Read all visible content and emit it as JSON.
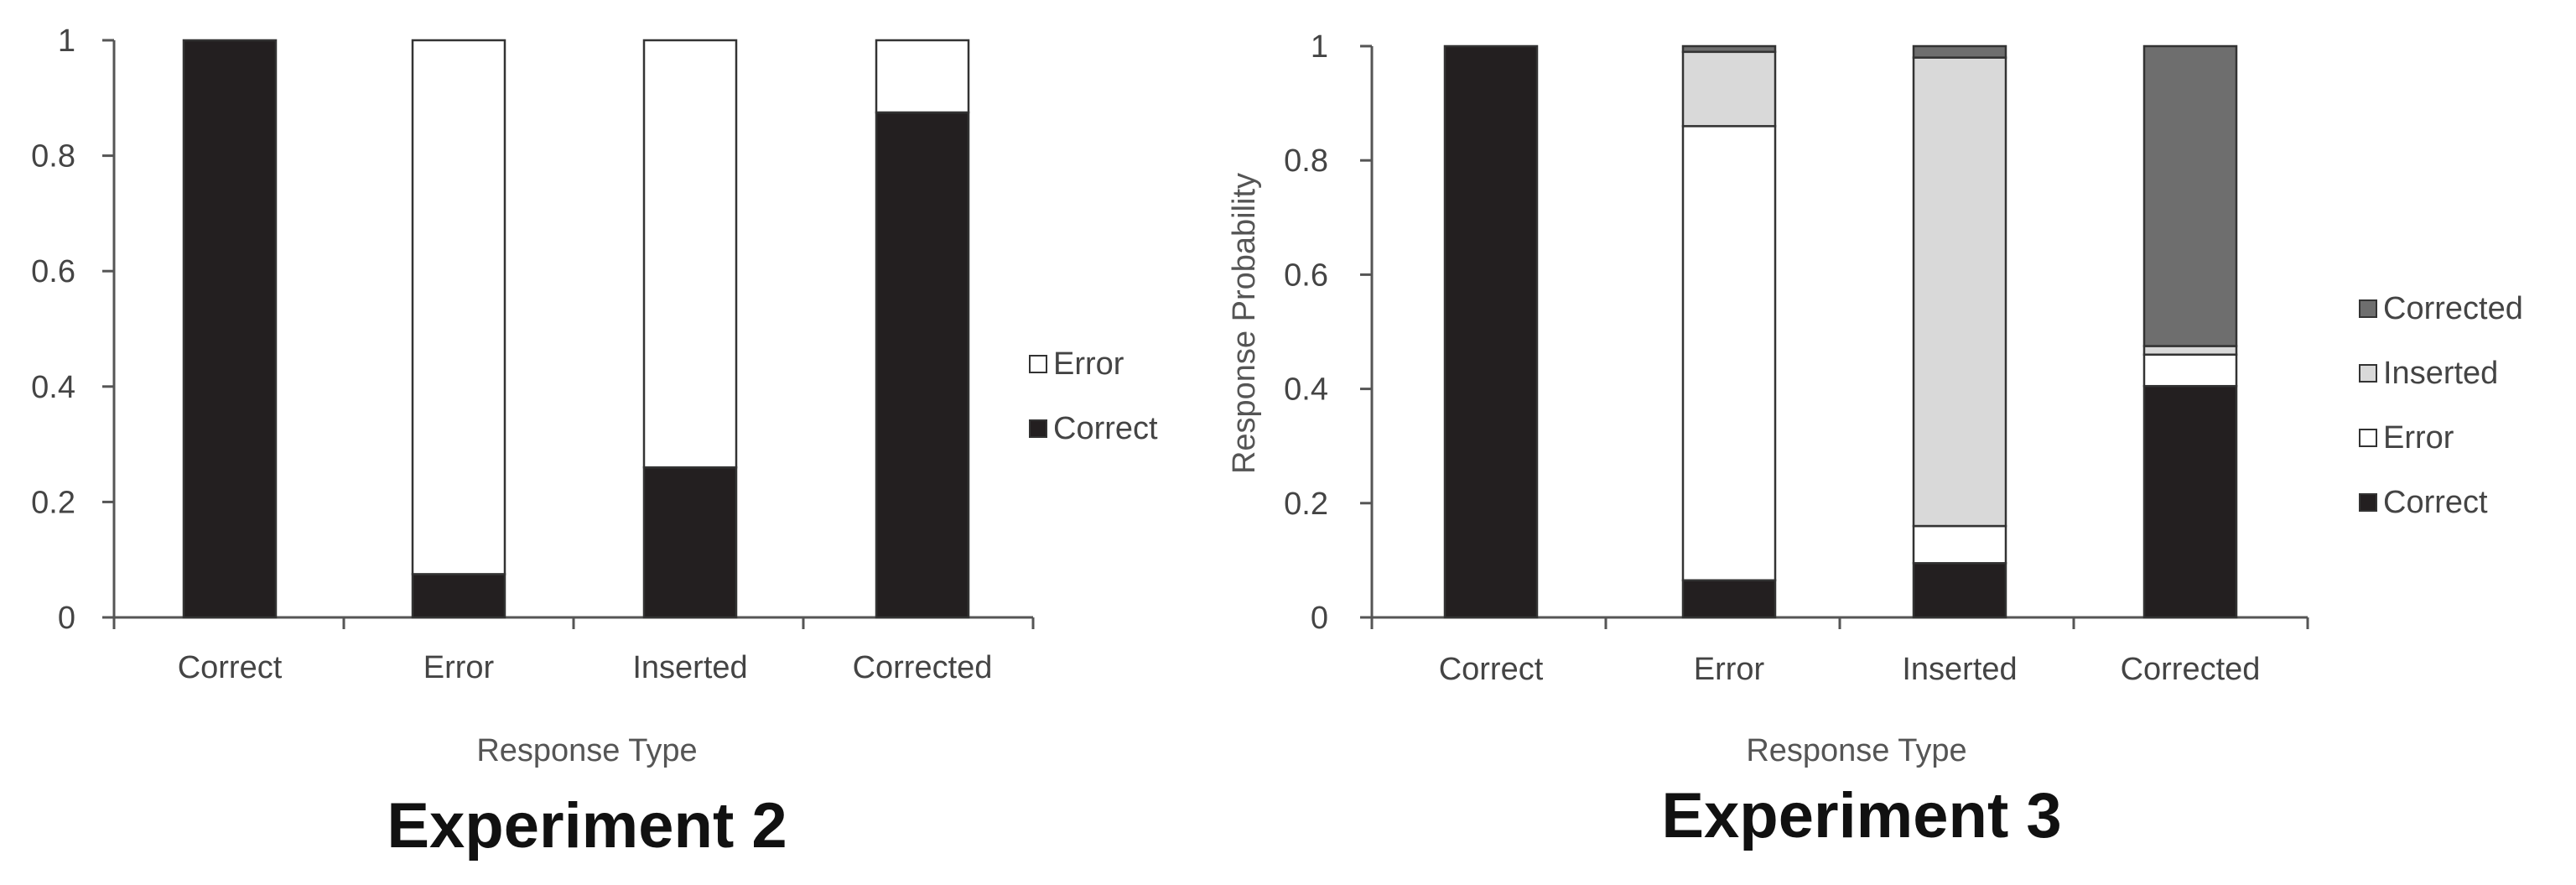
{
  "colors": {
    "Correct": "#231f20",
    "Error": "#ffffff",
    "Inserted": "#d9d9d9",
    "Corrected": "#6e6e6e",
    "axis": "#555555",
    "outline": "#333333"
  },
  "chart_data": [
    {
      "type": "bar",
      "stacked": true,
      "caption": "Experiment 2",
      "xlabel": "Response Type",
      "ylabel": "",
      "ylim": [
        0,
        1
      ],
      "yticks": [
        "0",
        "0.2",
        "0.4",
        "0.6",
        "0.8",
        "1"
      ],
      "categories": [
        "Correct",
        "Error",
        "Inserted",
        "Corrected"
      ],
      "series": [
        {
          "name": "Correct",
          "values": [
            1.0,
            0.075,
            0.26,
            0.875
          ]
        },
        {
          "name": "Error",
          "values": [
            0.0,
            0.925,
            0.74,
            0.125
          ]
        }
      ],
      "legend": [
        "Error",
        "Correct"
      ]
    },
    {
      "type": "bar",
      "stacked": true,
      "caption": "Experiment 3",
      "xlabel": "Response Type",
      "ylabel": "Response Probability",
      "ylim": [
        0,
        1
      ],
      "yticks": [
        "0",
        "0.2",
        "0.4",
        "0.6",
        "0.8",
        "1"
      ],
      "categories": [
        "Correct",
        "Error",
        "Inserted",
        "Corrected"
      ],
      "series": [
        {
          "name": "Correct",
          "values": [
            1.0,
            0.065,
            0.095,
            0.405
          ]
        },
        {
          "name": "Error",
          "values": [
            0.0,
            0.795,
            0.065,
            0.055
          ]
        },
        {
          "name": "Inserted",
          "values": [
            0.0,
            0.13,
            0.82,
            0.015
          ]
        },
        {
          "name": "Corrected",
          "values": [
            0.0,
            0.01,
            0.02,
            0.525
          ]
        }
      ],
      "legend": [
        "Corrected",
        "Inserted",
        "Error",
        "Correct"
      ]
    }
  ]
}
